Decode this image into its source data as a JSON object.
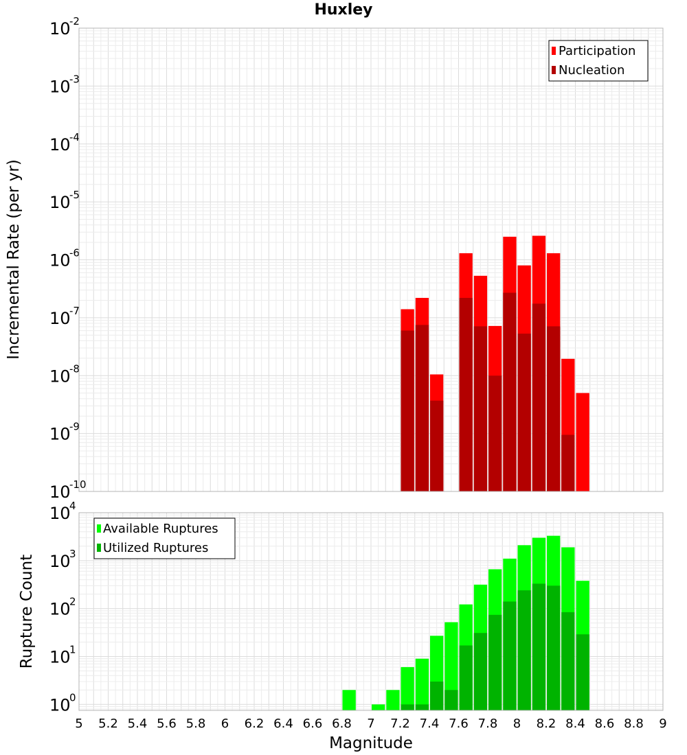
{
  "colors": {
    "participation": "#ff0000",
    "nucleation": "#b30000",
    "available": "#00ff00",
    "utilized": "#00b300"
  },
  "chart_data": [
    {
      "type": "bar",
      "title": "Huxley",
      "xlabel": "",
      "ylabel": "Incremental Rate (per yr)",
      "yscale": "log",
      "ylim": [
        1e-10,
        0.01
      ],
      "xlim": [
        5,
        9
      ],
      "grid": true,
      "legend_position": "top-right",
      "bar_width": 0.1,
      "x": [
        7.25,
        7.35,
        7.45,
        7.55,
        7.65,
        7.75,
        7.85,
        7.95,
        8.05,
        8.15,
        8.25,
        8.35,
        8.45
      ],
      "series": [
        {
          "name": "Participation",
          "values": [
            1.4e-07,
            2.2e-07,
            1.05e-08,
            null,
            1.3e-06,
            5.3e-07,
            7.2e-08,
            2.5e-06,
            8e-07,
            2.6e-06,
            1.3e-06,
            1.95e-08,
            5e-09
          ]
        },
        {
          "name": "Nucleation",
          "values": [
            6e-08,
            7.5e-08,
            3.7e-09,
            null,
            2.2e-07,
            7.1e-08,
            1e-08,
            2.7e-07,
            5.3e-08,
            1.75e-07,
            7.1e-08,
            9.5e-10,
            null
          ]
        }
      ]
    },
    {
      "type": "bar",
      "title": "",
      "xlabel": "Magnitude",
      "ylabel": "Rupture Count",
      "yscale": "log",
      "ylim": [
        0.75,
        10000
      ],
      "xlim": [
        5,
        9
      ],
      "grid": true,
      "legend_position": "top-left",
      "bar_width": 0.1,
      "x": [
        6.85,
        6.95,
        7.05,
        7.15,
        7.25,
        7.35,
        7.45,
        7.55,
        7.65,
        7.75,
        7.85,
        7.95,
        8.05,
        8.15,
        8.25,
        8.35,
        8.45
      ],
      "series": [
        {
          "name": "Available Ruptures",
          "values": [
            2,
            null,
            1,
            2,
            6,
            9,
            27,
            52,
            122,
            315,
            660,
            1100,
            2100,
            3000,
            3300,
            1900,
            380
          ]
        },
        {
          "name": "Utilized Ruptures",
          "values": [
            null,
            null,
            null,
            null,
            1,
            1,
            3,
            2,
            17,
            31,
            74,
            140,
            240,
            330,
            300,
            84,
            29
          ]
        }
      ]
    }
  ],
  "x_ticks": [
    "5",
    "5.2",
    "5.4",
    "5.6",
    "5.8",
    "6",
    "6.2",
    "6.4",
    "6.6",
    "6.8",
    "7",
    "7.2",
    "7.4",
    "7.6",
    "7.8",
    "8",
    "8.2",
    "8.4",
    "8.6",
    "8.8",
    "9"
  ],
  "top_y_ticks": [
    {
      "base": "10",
      "exp": "-2"
    },
    {
      "base": "10",
      "exp": "-3"
    },
    {
      "base": "10",
      "exp": "-4"
    },
    {
      "base": "10",
      "exp": "-5"
    },
    {
      "base": "10",
      "exp": "-6"
    },
    {
      "base": "10",
      "exp": "-7"
    },
    {
      "base": "10",
      "exp": "-8"
    },
    {
      "base": "10",
      "exp": "-9"
    },
    {
      "base": "10",
      "exp": "-10"
    }
  ],
  "bottom_y_ticks": [
    {
      "base": "10",
      "exp": "4"
    },
    {
      "base": "10",
      "exp": "3"
    },
    {
      "base": "10",
      "exp": "2"
    },
    {
      "base": "10",
      "exp": "1"
    },
    {
      "base": "10",
      "exp": "0"
    }
  ]
}
